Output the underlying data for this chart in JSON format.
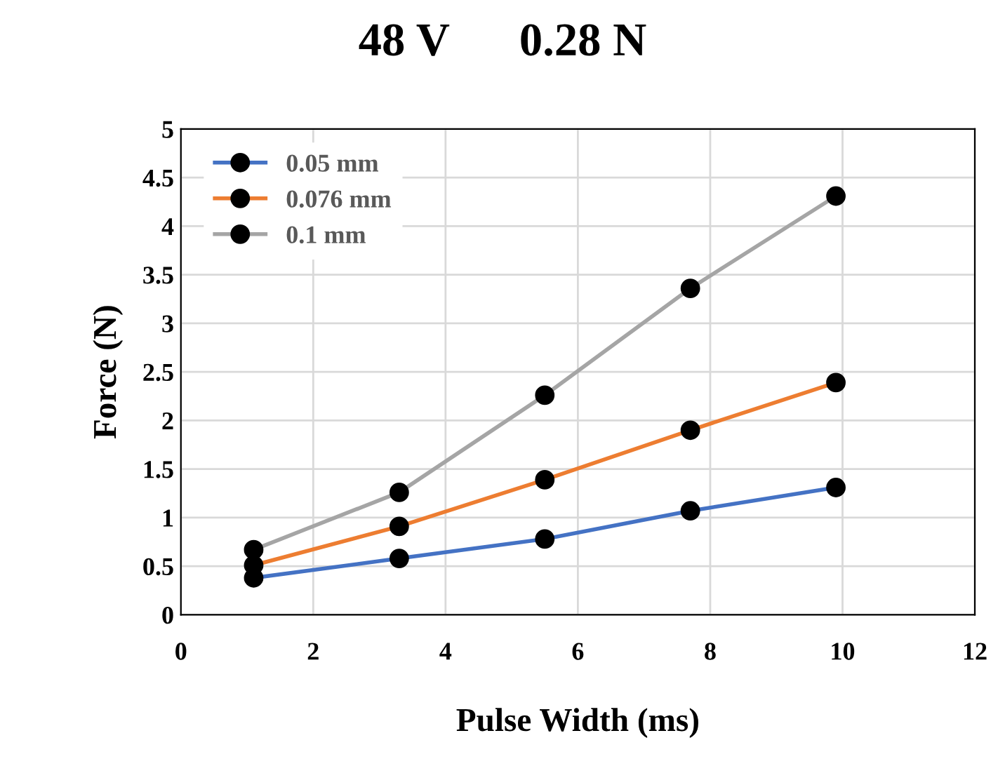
{
  "chart_data": {
    "type": "line",
    "title": "48 V      0.28 N",
    "xlabel": "Pulse Width (ms)",
    "ylabel": "Force (N)",
    "x": [
      1.1,
      3.3,
      5.5,
      7.7,
      9.9
    ],
    "series": [
      {
        "name": "0.05 mm",
        "color": "#4472c4",
        "values": [
          0.38,
          0.58,
          0.78,
          1.07,
          1.31
        ]
      },
      {
        "name": "0.076 mm",
        "color": "#ed7d31",
        "values": [
          0.51,
          0.91,
          1.39,
          1.9,
          2.39
        ]
      },
      {
        "name": "0.1 mm",
        "color": "#a5a5a5",
        "values": [
          0.67,
          1.26,
          2.26,
          3.36,
          4.31
        ]
      }
    ],
    "xlim": [
      0,
      12
    ],
    "xticks": [
      0,
      2,
      4,
      6,
      8,
      10,
      12
    ],
    "ylim": [
      0,
      5
    ],
    "yticks": [
      0,
      0.5,
      1,
      1.5,
      2,
      2.5,
      3,
      3.5,
      4,
      4.5,
      5
    ],
    "grid": true,
    "legend": "top left",
    "marker": "circle",
    "line_style": "solid"
  }
}
